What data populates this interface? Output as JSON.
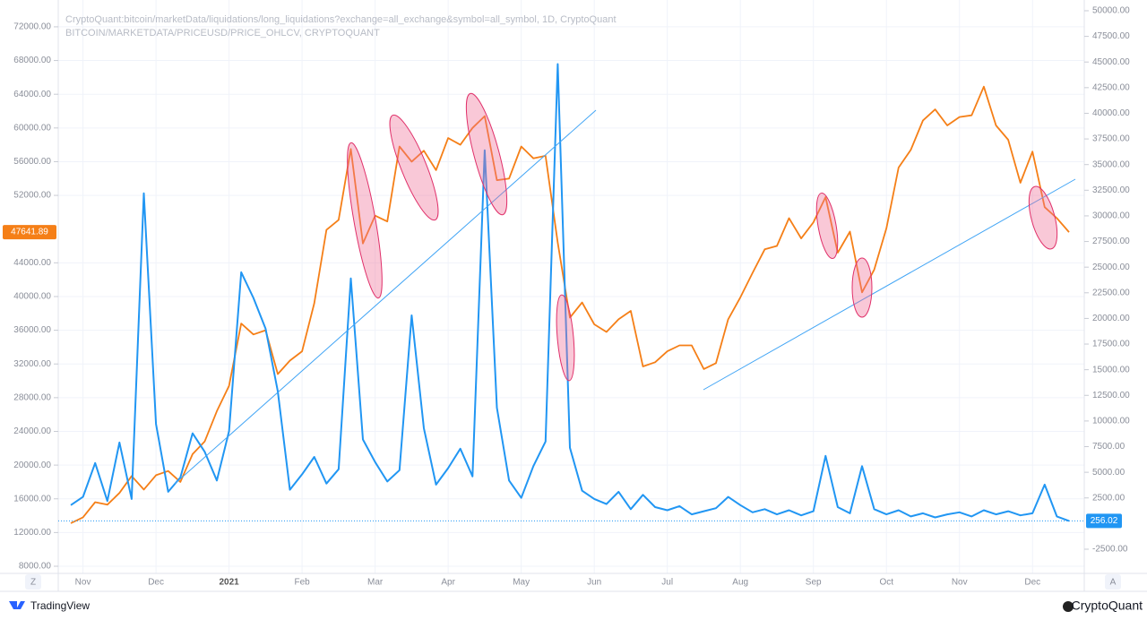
{
  "chart_data": {
    "type": "line",
    "categories": [
      null,
      "Nov",
      null,
      null,
      null,
      null,
      null,
      "Dec",
      null,
      null,
      null,
      null,
      null,
      "2021",
      null,
      null,
      null,
      null,
      null,
      "Feb",
      null,
      null,
      null,
      null,
      null,
      "Mar",
      null,
      null,
      null,
      null,
      null,
      "Apr",
      null,
      null,
      null,
      null,
      null,
      "May",
      null,
      null,
      null,
      null,
      null,
      "Jun",
      null,
      null,
      null,
      null,
      null,
      "Jul",
      null,
      null,
      null,
      null,
      null,
      "Aug",
      null,
      null,
      null,
      null,
      null,
      "Sep",
      null,
      null,
      null,
      null,
      null,
      "Oct",
      null,
      null,
      null,
      null,
      null,
      "Nov",
      null,
      null,
      null,
      null,
      null,
      "Dec",
      null,
      null,
      null
    ],
    "series": [
      {
        "name": "CryptoQuant:bitcoin/marketData/liquidations/long_liquidations?exchange=all_exchange&symbol=all_symbol, 1D, CryptoQuant",
        "color": "#2196f3",
        "axis": "y2",
        "values": [
          1800,
          2600,
          5900,
          2200,
          7900,
          2400,
          32200,
          9700,
          3100,
          4500,
          8800,
          7000,
          4200,
          9000,
          24500,
          22000,
          19000,
          12900,
          3300,
          4800,
          6500,
          3900,
          5300,
          23900,
          8200,
          6000,
          4100,
          5200,
          20300,
          9300,
          3800,
          5400,
          7300,
          4600,
          36400,
          11300,
          4200,
          2500,
          5600,
          8000,
          44800,
          7400,
          3200,
          2400,
          1900,
          3100,
          1400,
          2800,
          1600,
          1300,
          1700,
          900,
          1200,
          1500,
          2600,
          1800,
          1100,
          1400,
          900,
          1300,
          800,
          1200,
          6600,
          1600,
          1000,
          5600,
          1400,
          900,
          1300,
          700,
          1000,
          600,
          900,
          1100,
          700,
          1300,
          900,
          1200,
          800,
          1000,
          3800,
          700,
          256.02
        ]
      },
      {
        "name": "BITCOIN/MARKETDATA/PRICEUSD/PRICE_OHLCV, CRYPTOQUANT",
        "color": "#f57f17",
        "values": [
          13100,
          13800,
          15600,
          15300,
          16700,
          18700,
          17100,
          18800,
          19300,
          18000,
          21300,
          22800,
          26400,
          29400,
          36800,
          35500,
          36000,
          30800,
          32400,
          33500,
          39200,
          47900,
          49100,
          57500,
          46300,
          49600,
          48900,
          57800,
          56000,
          57300,
          55000,
          58800,
          58000,
          60000,
          61400,
          53800,
          54000,
          57800,
          56400,
          56700,
          46400,
          37500,
          39300,
          36700,
          35800,
          37300,
          38300,
          31700,
          32200,
          33500,
          34200,
          34200,
          31400,
          32100,
          37300,
          39900,
          42800,
          45600,
          46000,
          49300,
          46900,
          48800,
          51800,
          45200,
          47700,
          40500,
          43200,
          48100,
          55300,
          57400,
          60900,
          62200,
          60300,
          61300,
          61500,
          64900,
          60300,
          58600,
          53500,
          57200,
          50600,
          49300,
          47641.89
        ]
      }
    ],
    "ylim": [
      7150,
      74650
    ],
    "yticks": [
      {
        "value": 8000,
        "label": "8000.00"
      },
      {
        "value": 12000,
        "label": "12000.00"
      },
      {
        "value": 16000,
        "label": "16000.00"
      },
      {
        "value": 20000,
        "label": "20000.00"
      },
      {
        "value": 24000,
        "label": "24000.00"
      },
      {
        "value": 28000,
        "label": "28000.00"
      },
      {
        "value": 32000,
        "label": "32000.00"
      },
      {
        "value": 36000,
        "label": "36000.00"
      },
      {
        "value": 40000,
        "label": "40000.00"
      },
      {
        "value": 44000,
        "label": "44000.00"
      },
      {
        "value": 52000,
        "label": "52000.00"
      },
      {
        "value": 56000,
        "label": "56000.00"
      },
      {
        "value": 60000,
        "label": "60000.00"
      },
      {
        "value": 64000,
        "label": "64000.00"
      },
      {
        "value": 68000,
        "label": "68000.00"
      },
      {
        "value": 72000,
        "label": "72000.00"
      }
    ],
    "y2lim": [
      -4860,
      50610
    ],
    "y2ticks": [
      {
        "value": -2500,
        "label": "-2500.00"
      },
      {
        "value": 2500,
        "label": "2500.00"
      },
      {
        "value": 5000,
        "label": "5000.00"
      },
      {
        "value": 7500,
        "label": "7500.00"
      },
      {
        "value": 10000,
        "label": "10000.00"
      },
      {
        "value": 12500,
        "label": "12500.00"
      },
      {
        "value": 15000,
        "label": "15000.00"
      },
      {
        "value": 17500,
        "label": "17500.00"
      },
      {
        "value": 20000,
        "label": "20000.00"
      },
      {
        "value": 22500,
        "label": "22500.00"
      },
      {
        "value": 25000,
        "label": "25000.00"
      },
      {
        "value": 27500,
        "label": "27500.00"
      },
      {
        "value": 30000,
        "label": "30000.00"
      },
      {
        "value": 32500,
        "label": "32500.00"
      },
      {
        "value": 35000,
        "label": "35000.00"
      },
      {
        "value": 37500,
        "label": "37500.00"
      },
      {
        "value": 40000,
        "label": "40000.00"
      },
      {
        "value": 42500,
        "label": "42500.00"
      },
      {
        "value": 45000,
        "label": "45000.00"
      },
      {
        "value": 47500,
        "label": "47500.00"
      },
      {
        "value": 50000,
        "label": "50000.00"
      }
    ],
    "grid": true
  },
  "ui": {
    "scale_left": "Z",
    "scale_right": "A",
    "footer_left": "TradingView",
    "footer_right": "CryptoQuant"
  }
}
